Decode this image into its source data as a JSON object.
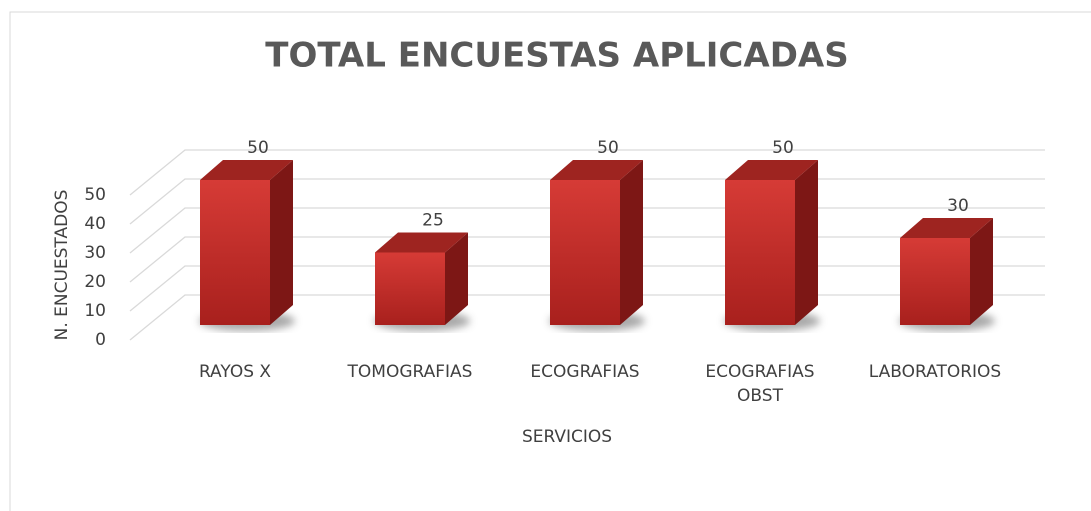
{
  "chart_data": {
    "type": "bar3d",
    "title": "TOTAL ENCUESTAS APLICADAS",
    "categories": [
      "RAYOS X",
      "TOMOGRAFIAS",
      "ECOGRAFIAS",
      "ECOGRAFIAS OBST",
      "LABORATORIOS"
    ],
    "values": [
      50,
      25,
      50,
      50,
      30
    ],
    "color": "#c9302c",
    "ylim": [
      0,
      50
    ],
    "yticks": [
      0,
      10,
      20,
      30,
      40,
      50
    ],
    "grid": true,
    "x_label": "SERVICIOS",
    "y_label": "N. ENCUESTADOS"
  }
}
